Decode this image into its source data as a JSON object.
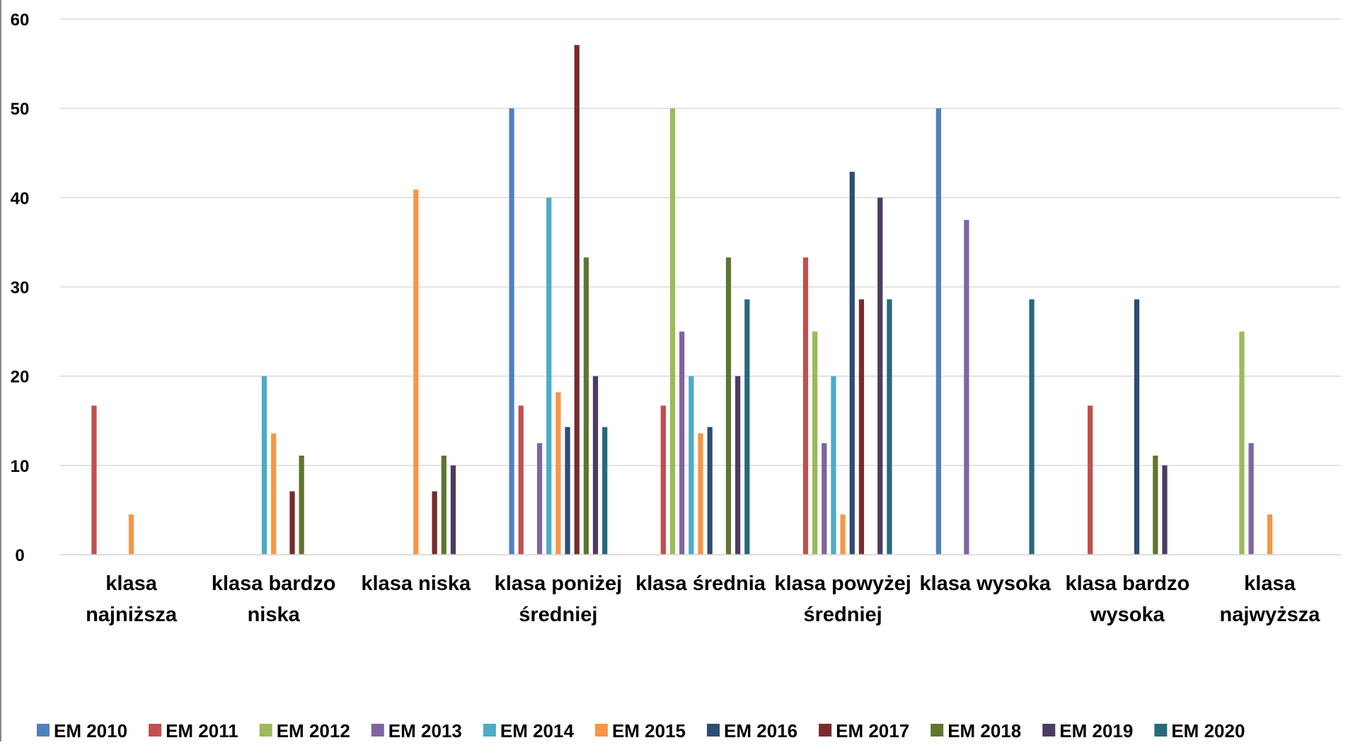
{
  "chart_data": {
    "type": "bar",
    "categories": [
      "klasa najniższa",
      "klasa bardzo niska",
      "klasa niska",
      "klasa poniżej średniej",
      "klasa średnia",
      "klasa powyżej średniej",
      "klasa wysoka",
      "klasa bardzo wysoka",
      "klasa najwyższa"
    ],
    "series": [
      {
        "name": "EM 2010",
        "color": "#4f81bd",
        "values": [
          0,
          0,
          0,
          50,
          0,
          0,
          50,
          0,
          0
        ]
      },
      {
        "name": "EM 2011",
        "color": "#c0504d",
        "values": [
          16.7,
          0,
          0,
          16.7,
          16.7,
          33.3,
          0,
          16.7,
          0
        ]
      },
      {
        "name": "EM 2012",
        "color": "#9bbb59",
        "values": [
          0,
          0,
          0,
          0,
          50,
          25,
          0,
          0,
          25
        ]
      },
      {
        "name": "EM 2013",
        "color": "#8064a2",
        "values": [
          0,
          0,
          0,
          12.5,
          25,
          12.5,
          37.5,
          0,
          12.5
        ]
      },
      {
        "name": "EM 2014",
        "color": "#4bacc6",
        "values": [
          0,
          20,
          0,
          40,
          20,
          20,
          0,
          0,
          0
        ]
      },
      {
        "name": "EM 2015",
        "color": "#f79646",
        "values": [
          4.5,
          13.6,
          40.9,
          18.2,
          13.6,
          4.5,
          0,
          0,
          4.5
        ]
      },
      {
        "name": "EM 2016",
        "color": "#2c4d75",
        "values": [
          0,
          0,
          0,
          14.3,
          14.3,
          42.9,
          0,
          28.6,
          0
        ]
      },
      {
        "name": "EM 2017",
        "color": "#772c2a",
        "values": [
          0,
          7.1,
          7.1,
          57.1,
          0,
          28.6,
          0,
          0,
          0
        ]
      },
      {
        "name": "EM 2018",
        "color": "#5f7530",
        "values": [
          0,
          11.1,
          11.1,
          33.3,
          33.3,
          0,
          0,
          11.1,
          0
        ]
      },
      {
        "name": "EM 2019",
        "color": "#4d3b62",
        "values": [
          0,
          0,
          10,
          20,
          20,
          40,
          0,
          10,
          0
        ]
      },
      {
        "name": "EM 2020",
        "color": "#276a7c",
        "values": [
          0,
          0,
          0,
          14.3,
          28.6,
          28.6,
          28.6,
          0,
          0
        ]
      }
    ],
    "ylim": [
      0,
      60
    ],
    "yticks": [
      0,
      10,
      20,
      30,
      40,
      50,
      60
    ],
    "grid": true,
    "legend": "bottom"
  }
}
